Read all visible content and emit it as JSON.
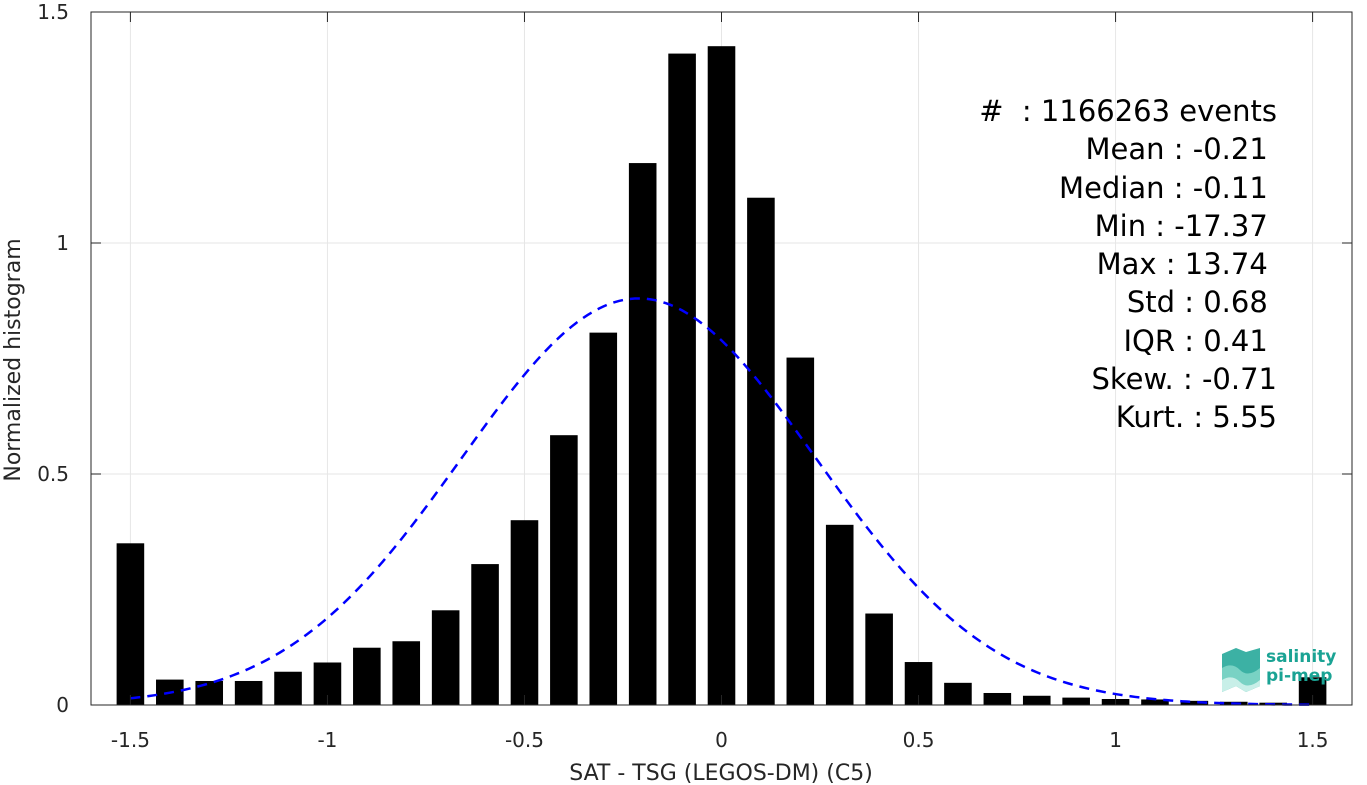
{
  "chart_data": {
    "type": "bar",
    "xlabel": "SAT - TSG (LEGOS-DM) (C5)",
    "ylabel": "Normalized histogram",
    "xlim": [
      -1.6,
      1.6
    ],
    "ylim": [
      0,
      1.5
    ],
    "xticks": [
      "-1.5",
      "-1",
      "-0.5",
      "0",
      "0.5",
      "1",
      "1.5"
    ],
    "yticks": [
      "0",
      "0.5",
      "1",
      "1.5"
    ],
    "grid": true,
    "bar_color": "#000000",
    "fit_color": "#0000ff",
    "bars": {
      "x": [
        -1.5,
        -1.4,
        -1.3,
        -1.2,
        -1.1,
        -1.0,
        -0.9,
        -0.8,
        -0.7,
        -0.6,
        -0.5,
        -0.4,
        -0.3,
        -0.2,
        -0.1,
        0.0,
        0.1,
        0.2,
        0.3,
        0.4,
        0.5,
        0.6,
        0.7,
        0.8,
        0.9,
        1.0,
        1.1,
        1.2,
        1.3,
        1.4,
        1.5
      ],
      "values": [
        0.35,
        0.055,
        0.052,
        0.052,
        0.072,
        0.092,
        0.124,
        0.138,
        0.205,
        0.305,
        0.4,
        0.584,
        0.806,
        1.173,
        1.41,
        1.426,
        1.098,
        0.752,
        0.39,
        0.198,
        0.093,
        0.048,
        0.026,
        0.02,
        0.016,
        0.013,
        0.012,
        0.009,
        0.007,
        0.005,
        0.06
      ]
    },
    "fit": {
      "type": "gaussian",
      "mean": -0.21,
      "std": 0.45,
      "peak": 0.88
    },
    "stats": [
      "#  : 1166263 events",
      "Mean : -0.21 ",
      "Median : -0.11 ",
      "Min : -17.37 ",
      "Max : 13.74 ",
      "Std : 0.68 ",
      "IQR : 0.41 ",
      "Skew. : -0.71",
      "Kurt. : 5.55"
    ]
  },
  "logo": {
    "line1": "salinity",
    "line2": "pi-mep"
  }
}
